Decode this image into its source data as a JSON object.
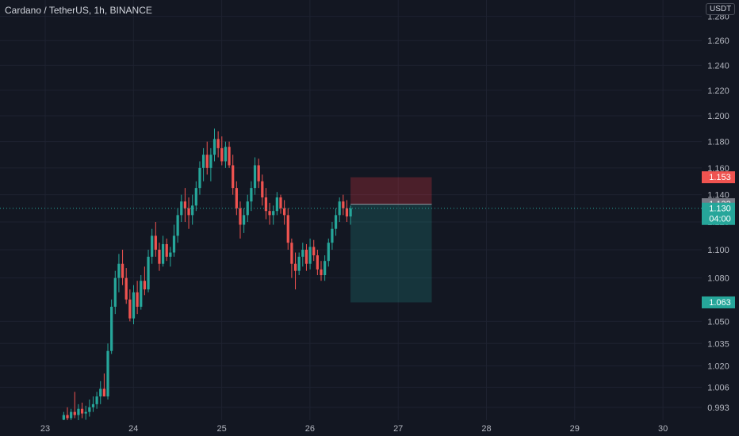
{
  "header": {
    "title": "Cardano / TetherUS, 1h, BINANCE",
    "currency": "USDT"
  },
  "colors": {
    "background": "#131722",
    "grid": "#1e2230",
    "axis_text": "#b2b5be",
    "up": "#26a69a",
    "down": "#ef5350",
    "stop_zone": "rgba(242,54,69,0.25)",
    "target_zone": "rgba(38,166,154,0.22)",
    "entry_badge": "#787b86"
  },
  "chart_data": {
    "type": "candlestick",
    "symbol": "ADAUSDT",
    "interval": "1h",
    "exchange": "BINANCE",
    "x_axis": {
      "ticks": [
        "23",
        "24",
        "25",
        "26",
        "27",
        "28",
        "29",
        "30"
      ],
      "range_days": [
        22.5,
        30.45
      ]
    },
    "y_axis": {
      "scale": "log",
      "ticks": [
        "1.280",
        "1.260",
        "1.240",
        "1.220",
        "1.200",
        "1.180",
        "1.160",
        "1.140",
        "1.120",
        "1.100",
        "1.080",
        "1.050",
        "1.035",
        "1.020",
        "1.006",
        "0.993"
      ],
      "range": [
        0.982,
        1.283
      ]
    },
    "price_labels": [
      {
        "label": "1.153",
        "value": 1.153,
        "kind": "stop-loss"
      },
      {
        "label": "1.133",
        "value": 1.133,
        "kind": "entry"
      },
      {
        "label": "1.130",
        "sub": "04:00",
        "value": 1.13,
        "kind": "last-price"
      },
      {
        "label": "1.063",
        "value": 1.063,
        "kind": "take-profit"
      }
    ],
    "position": {
      "side": "short",
      "entry": 1.133,
      "stop": 1.153,
      "target": 1.063,
      "from_day": 26.46,
      "to_day": 27.38
    },
    "candles_ohlc": [
      [
        0.985,
        0.99,
        0.982,
        0.988
      ],
      [
        0.988,
        0.993,
        0.984,
        0.986
      ],
      [
        0.986,
        0.992,
        0.983,
        0.99
      ],
      [
        0.99,
        1.003,
        0.986,
        0.988
      ],
      [
        0.988,
        0.995,
        0.984,
        0.992
      ],
      [
        0.992,
        0.996,
        0.986,
        0.989
      ],
      [
        0.989,
        0.994,
        0.985,
        0.99
      ],
      [
        0.99,
        0.998,
        0.987,
        0.993
      ],
      [
        0.993,
        1.0,
        0.99,
        0.995
      ],
      [
        0.995,
        1.003,
        0.992,
        1.0
      ],
      [
        1.0,
        1.01,
        0.995,
        1.005
      ],
      [
        1.005,
        1.015,
        1.0,
        1.0
      ],
      [
        1.0,
        1.035,
        0.998,
        1.03
      ],
      [
        1.03,
        1.065,
        1.028,
        1.06
      ],
      [
        1.06,
        1.085,
        1.055,
        1.08
      ],
      [
        1.08,
        1.097,
        1.07,
        1.09
      ],
      [
        1.09,
        1.1,
        1.075,
        1.08
      ],
      [
        1.08,
        1.087,
        1.062,
        1.065
      ],
      [
        1.065,
        1.072,
        1.05,
        1.052
      ],
      [
        1.052,
        1.075,
        1.048,
        1.07
      ],
      [
        1.07,
        1.078,
        1.055,
        1.06
      ],
      [
        1.06,
        1.082,
        1.058,
        1.078
      ],
      [
        1.078,
        1.088,
        1.068,
        1.072
      ],
      [
        1.072,
        1.1,
        1.07,
        1.095
      ],
      [
        1.095,
        1.115,
        1.09,
        1.11
      ],
      [
        1.11,
        1.12,
        1.095,
        1.1
      ],
      [
        1.1,
        1.105,
        1.085,
        1.09
      ],
      [
        1.09,
        1.11,
        1.088,
        1.104
      ],
      [
        1.104,
        1.108,
        1.092,
        1.095
      ],
      [
        1.095,
        1.102,
        1.088,
        1.098
      ],
      [
        1.098,
        1.118,
        1.095,
        1.11
      ],
      [
        1.11,
        1.13,
        1.105,
        1.125
      ],
      [
        1.125,
        1.14,
        1.12,
        1.135
      ],
      [
        1.135,
        1.145,
        1.12,
        1.13
      ],
      [
        1.13,
        1.138,
        1.115,
        1.125
      ],
      [
        1.125,
        1.14,
        1.118,
        1.132
      ],
      [
        1.132,
        1.15,
        1.128,
        1.145
      ],
      [
        1.145,
        1.165,
        1.14,
        1.16
      ],
      [
        1.16,
        1.175,
        1.15,
        1.17
      ],
      [
        1.17,
        1.18,
        1.155,
        1.16
      ],
      [
        1.16,
        1.175,
        1.15,
        1.17
      ],
      [
        1.17,
        1.19,
        1.165,
        1.182
      ],
      [
        1.182,
        1.188,
        1.168,
        1.175
      ],
      [
        1.175,
        1.184,
        1.162,
        1.165
      ],
      [
        1.165,
        1.18,
        1.16,
        1.176
      ],
      [
        1.176,
        1.18,
        1.16,
        1.162
      ],
      [
        1.162,
        1.17,
        1.14,
        1.145
      ],
      [
        1.145,
        1.15,
        1.125,
        1.13
      ],
      [
        1.13,
        1.135,
        1.108,
        1.118
      ],
      [
        1.118,
        1.13,
        1.112,
        1.125
      ],
      [
        1.125,
        1.14,
        1.12,
        1.135
      ],
      [
        1.135,
        1.15,
        1.128,
        1.145
      ],
      [
        1.145,
        1.168,
        1.14,
        1.162
      ],
      [
        1.162,
        1.167,
        1.145,
        1.15
      ],
      [
        1.15,
        1.155,
        1.132,
        1.138
      ],
      [
        1.138,
        1.145,
        1.122,
        1.128
      ],
      [
        1.128,
        1.134,
        1.118,
        1.125
      ],
      [
        1.125,
        1.132,
        1.118,
        1.128
      ],
      [
        1.128,
        1.142,
        1.125,
        1.138
      ],
      [
        1.138,
        1.14,
        1.126,
        1.13
      ],
      [
        1.13,
        1.136,
        1.118,
        1.125
      ],
      [
        1.125,
        1.13,
        1.1,
        1.105
      ],
      [
        1.105,
        1.108,
        1.08,
        1.09
      ],
      [
        1.09,
        1.098,
        1.072,
        1.085
      ],
      [
        1.085,
        1.098,
        1.082,
        1.095
      ],
      [
        1.095,
        1.105,
        1.088,
        1.1
      ],
      [
        1.1,
        1.104,
        1.085,
        1.09
      ],
      [
        1.09,
        1.108,
        1.086,
        1.102
      ],
      [
        1.102,
        1.107,
        1.092,
        1.096
      ],
      [
        1.096,
        1.1,
        1.082,
        1.086
      ],
      [
        1.086,
        1.092,
        1.078,
        1.082
      ],
      [
        1.082,
        1.096,
        1.078,
        1.092
      ],
      [
        1.092,
        1.108,
        1.088,
        1.105
      ],
      [
        1.105,
        1.12,
        1.1,
        1.115
      ],
      [
        1.115,
        1.13,
        1.11,
        1.125
      ],
      [
        1.125,
        1.138,
        1.12,
        1.135
      ],
      [
        1.135,
        1.14,
        1.125,
        1.13
      ],
      [
        1.13,
        1.136,
        1.12,
        1.124
      ],
      [
        1.124,
        1.132,
        1.118,
        1.13
      ]
    ]
  }
}
